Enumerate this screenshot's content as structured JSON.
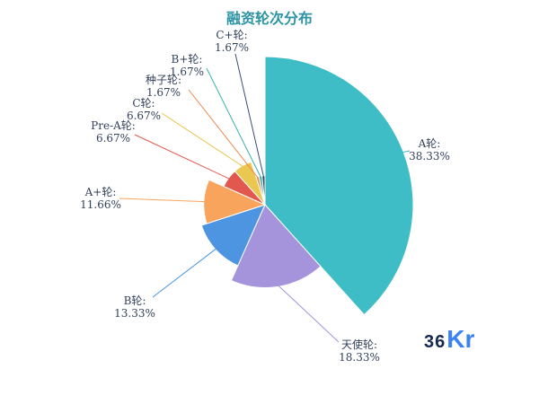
{
  "page": {
    "title": "融资轮次分布"
  },
  "logo": {
    "part1": "36",
    "part2": "Kr"
  },
  "chart_data": {
    "type": "pie",
    "variant": "nightingale-rose",
    "title": "融资轮次分布",
    "legend_position": "none",
    "label_format": "name: percent",
    "series": [
      {
        "name": "A轮",
        "value": 38.33,
        "pct": "38.33%",
        "color": "#3fbdc6"
      },
      {
        "name": "天使轮",
        "value": 18.33,
        "pct": "18.33%",
        "color": "#a593dc"
      },
      {
        "name": "B轮",
        "value": 13.33,
        "pct": "13.33%",
        "color": "#4d95e0"
      },
      {
        "name": "A+轮",
        "value": 11.66,
        "pct": "11.66%",
        "color": "#f9a45c"
      },
      {
        "name": "Pre-A轮",
        "value": 6.67,
        "pct": "6.67%",
        "color": "#e2574e"
      },
      {
        "name": "C轮",
        "value": 6.67,
        "pct": "6.67%",
        "color": "#e9c750"
      },
      {
        "name": "种子轮",
        "value": 1.67,
        "pct": "1.67%",
        "color": "#ef8a4e"
      },
      {
        "name": "B+轮",
        "value": 1.67,
        "pct": "1.67%",
        "color": "#38b2a8"
      },
      {
        "name": "C+轮",
        "value": 1.67,
        "pct": "1.67%",
        "color": "#3e4c74"
      }
    ]
  }
}
